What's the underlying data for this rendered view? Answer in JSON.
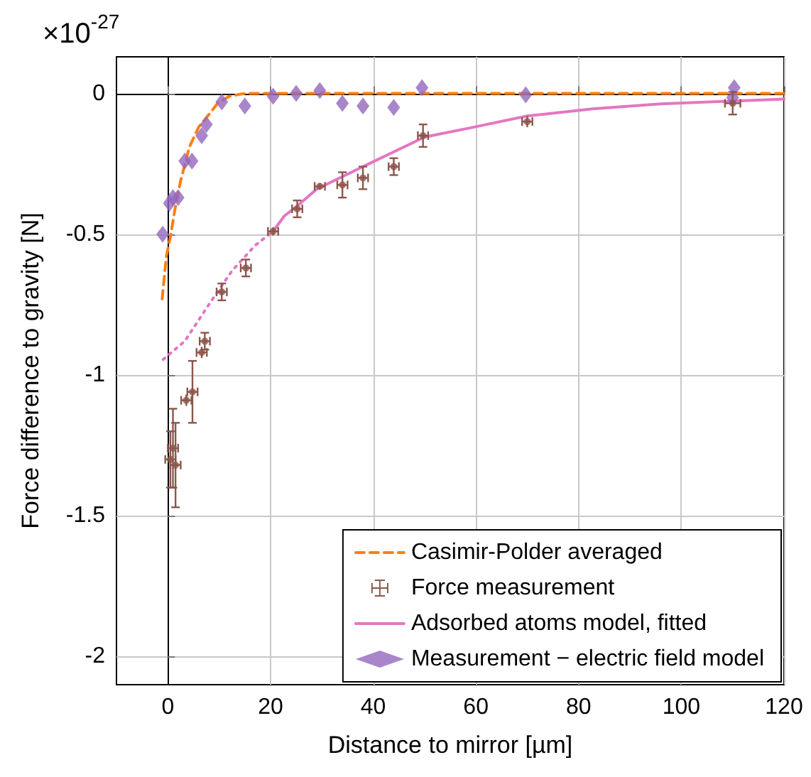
{
  "chart_data": {
    "type": "line",
    "xlabel": "Distance to mirror [µm]",
    "ylabel": "Force difference to gravity [N]",
    "annotations": [
      "×10$^{-27}$"
    ],
    "xlim": [
      -10,
      120
    ],
    "xticks": [
      0,
      20,
      40,
      60,
      80,
      100,
      120
    ],
    "ylim": [
      -2.1,
      0.13
    ],
    "yticks": [
      0,
      -0.5,
      -1,
      -1.5,
      -2
    ],
    "grid": true,
    "legend": "bottom right",
    "series": [
      {
        "name": "Casimir-Polder averaged",
        "color": "#ff7f0e",
        "line_style": "dashed",
        "marker": "none",
        "x": [
          -1.1,
          -0.3,
          0.5,
          1.4,
          2.5,
          4.2,
          6,
          8,
          9.7,
          12,
          15,
          120
        ],
        "values": [
          -0.73,
          -0.58,
          -0.51,
          -0.41,
          -0.31,
          -0.19,
          -0.12,
          -0.075,
          -0.035,
          -0.01,
          0,
          0
        ]
      },
      {
        "name": "Force measurement",
        "type": "scatter",
        "color": "#8c564b",
        "marker": "circle",
        "x": [
          0.5,
          1,
          1.5,
          3.6,
          4.8,
          6.6,
          7.2,
          10.5,
          15.2,
          20.5,
          25.2,
          29.6,
          34,
          38,
          44,
          49.7,
          70,
          110
        ],
        "values": [
          -1.3,
          -1.26,
          -1.32,
          -1.09,
          -1.06,
          -0.92,
          -0.88,
          -0.705,
          -0.62,
          -0.49,
          -0.41,
          -0.33,
          -0.325,
          -0.3,
          -0.26,
          -0.15,
          -0.1,
          -0.035
        ],
        "errors": [
          0.1,
          0.14,
          0.15,
          0.02,
          0.11,
          0.02,
          0.03,
          0.03,
          0.03,
          0.015,
          0.03,
          0.01,
          0.045,
          0.04,
          0.03,
          0.04,
          0.02,
          0.04
        ],
        "xerrors": [
          1,
          1,
          1,
          1,
          1,
          1,
          1,
          1,
          1,
          1,
          1,
          1,
          1,
          1,
          1,
          1,
          1,
          1.5
        ]
      },
      {
        "name": "Adsorbed atoms model, fitted",
        "color": "#e377c2",
        "line_style": "solid",
        "marker": "none",
        "x": [
          20.5,
          22.7,
          25.2,
          29,
          38,
          50,
          59.5,
          70,
          82.7,
          96,
          120
        ],
        "values": [
          -0.49,
          -0.435,
          -0.4,
          -0.34,
          -0.26,
          -0.155,
          -0.12,
          -0.08,
          -0.055,
          -0.037,
          -0.02
        ]
      },
      {
        "color": "#e377c2",
        "line_style": "dotted",
        "marker": "none",
        "x": [
          -0.9,
          3.3,
          8,
          12.5,
          17,
          20.5
        ],
        "values": [
          -0.945,
          -0.88,
          -0.75,
          -0.63,
          -0.54,
          -0.49
        ]
      },
      {
        "name": "Measurement − electric field model",
        "type": "scatter",
        "color": "#9467bd",
        "marker": "diamond",
        "x": [
          -1,
          0.3,
          1,
          2,
          3.3,
          4.7,
          6.6,
          7.5,
          10.5,
          15,
          20.5,
          25,
          29.6,
          34,
          38,
          44,
          49.5,
          69.7,
          110,
          110.3
        ],
        "values": [
          -0.5,
          -0.39,
          -0.37,
          -0.37,
          -0.24,
          -0.24,
          -0.15,
          -0.11,
          -0.03,
          -0.045,
          -0.01,
          0,
          0.01,
          -0.035,
          -0.045,
          -0.05,
          0.02,
          -0.005,
          -0.015,
          0.02
        ]
      }
    ]
  }
}
